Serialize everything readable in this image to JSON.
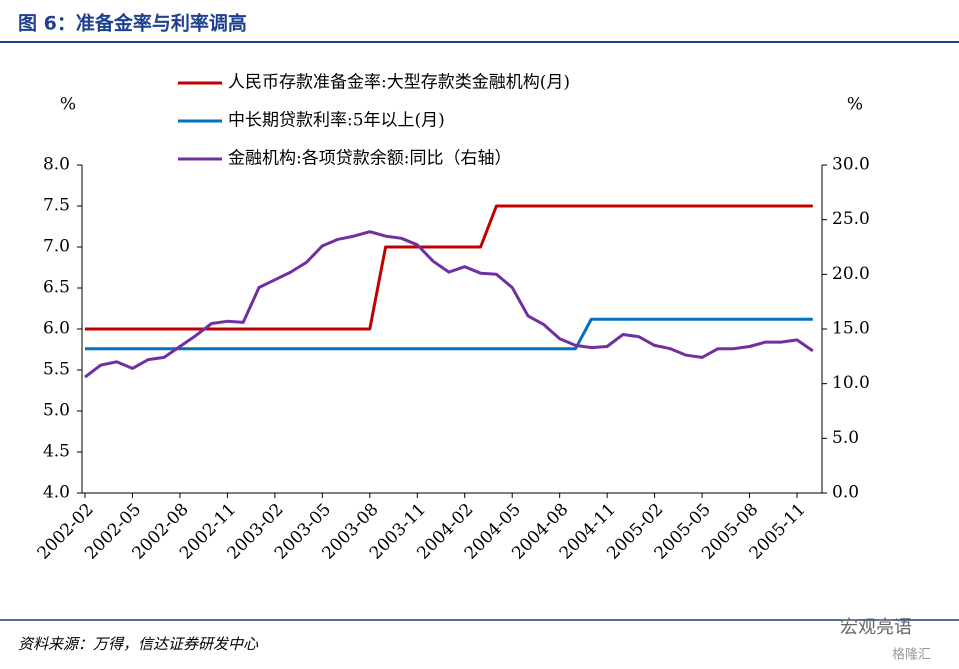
{
  "header": {
    "title": "图 6：准备金率与利率调高"
  },
  "chart_data": {
    "type": "line",
    "y_unit": "%",
    "y2_unit": "%",
    "categories": [
      "2002-02",
      null,
      null,
      "2002-05",
      null,
      null,
      "2002-08",
      null,
      null,
      "2002-11",
      null,
      null,
      "2003-02",
      null,
      null,
      "2003-05",
      null,
      null,
      "2003-08",
      null,
      null,
      "2003-11",
      null,
      null,
      "2004-02",
      null,
      null,
      "2004-05",
      null,
      null,
      "2004-08",
      null,
      null,
      "2004-11",
      null,
      null,
      "2005-02",
      null,
      null,
      "2005-05",
      null,
      null,
      "2005-08",
      null,
      null,
      "2005-11",
      null
    ],
    "ylim": [
      4.0,
      8.0
    ],
    "yticks": [
      {
        "value": 4.0,
        "label": "4.0"
      },
      {
        "value": 4.5,
        "label": "4.5"
      },
      {
        "value": 5.0,
        "label": "5.0"
      },
      {
        "value": 5.5,
        "label": "5.5"
      },
      {
        "value": 6.0,
        "label": "6.0"
      },
      {
        "value": 6.5,
        "label": "6.5"
      },
      {
        "value": 7.0,
        "label": "7.0"
      },
      {
        "value": 7.5,
        "label": "7.5"
      },
      {
        "value": 8.0,
        "label": "8.0"
      }
    ],
    "y2lim": [
      0.0,
      30.0
    ],
    "y2ticks": [
      {
        "value": 0.0,
        "label": "0.0"
      },
      {
        "value": 5.0,
        "label": "5.0"
      },
      {
        "value": 10.0,
        "label": "10.0"
      },
      {
        "value": 15.0,
        "label": "15.0"
      },
      {
        "value": 20.0,
        "label": "20.0"
      },
      {
        "value": 25.0,
        "label": "25.0"
      },
      {
        "value": 30.0,
        "label": "30.0"
      }
    ],
    "legend": "top",
    "series": [
      {
        "name": "人民币存款准备金率:大型存款类金融机构(月)",
        "color": "#c00000",
        "values": [
          6,
          6,
          6,
          6,
          6,
          6,
          6,
          6,
          6,
          6,
          6,
          6,
          6,
          6,
          6,
          6,
          6,
          6,
          6,
          7,
          7,
          7,
          7,
          7,
          7,
          7,
          7.5,
          7.5,
          7.5,
          7.5,
          7.5,
          7.5,
          7.5,
          7.5,
          7.5,
          7.5,
          7.5,
          7.5,
          7.5,
          7.5,
          7.5,
          7.5,
          7.5,
          7.5,
          7.5,
          7.5,
          7.5
        ]
      },
      {
        "name": "中长期贷款利率:5年以上(月)",
        "color": "#0070c0",
        "values": [
          5.76,
          5.76,
          5.76,
          5.76,
          5.76,
          5.76,
          5.76,
          5.76,
          5.76,
          5.76,
          5.76,
          5.76,
          5.76,
          5.76,
          5.76,
          5.76,
          5.76,
          5.76,
          5.76,
          5.76,
          5.76,
          5.76,
          5.76,
          5.76,
          5.76,
          5.76,
          5.76,
          5.76,
          5.76,
          5.76,
          5.76,
          5.76,
          6.12,
          6.12,
          6.12,
          6.12,
          6.12,
          6.12,
          6.12,
          6.12,
          6.12,
          6.12,
          6.12,
          6.12,
          6.12,
          6.12,
          6.12
        ]
      },
      {
        "name": "金融机构:各项贷款余额:同比（右轴）",
        "color": "#7030a0",
        "axis": "y2",
        "values": [
          10.6,
          11.7,
          12.0,
          11.4,
          12.2,
          12.4,
          13.4,
          14.4,
          15.5,
          15.7,
          15.6,
          18.8,
          19.5,
          20.2,
          21.1,
          22.6,
          23.2,
          23.5,
          23.9,
          23.5,
          23.3,
          22.7,
          21.2,
          20.2,
          20.7,
          20.1,
          20.0,
          18.8,
          16.2,
          15.4,
          14.1,
          13.5,
          13.3,
          13.4,
          14.5,
          14.3,
          13.5,
          13.2,
          12.6,
          12.4,
          13.2,
          13.2,
          13.4,
          13.8,
          13.8,
          14.0,
          13.0
        ]
      }
    ]
  },
  "footer": {
    "source": "资料来源：万得，信达证券研发中心",
    "watermark": "宏观亮语",
    "brand": "格隆汇"
  }
}
